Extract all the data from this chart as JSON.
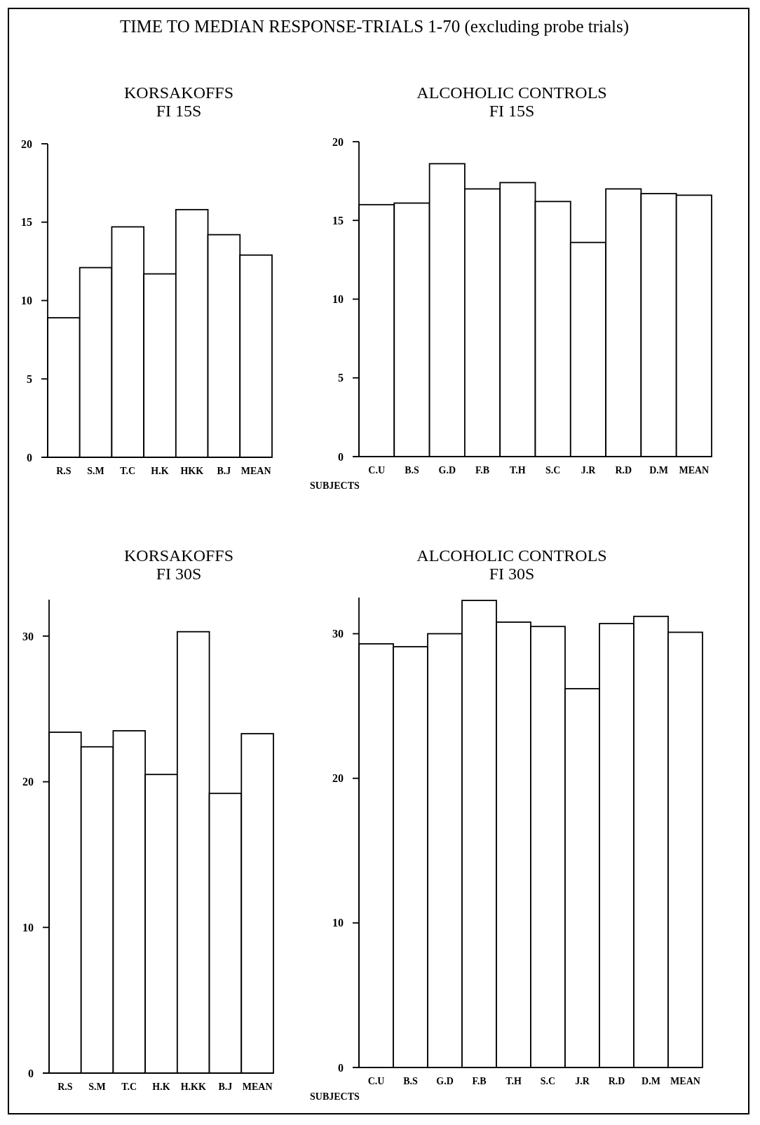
{
  "chart_data": [
    {
      "type": "bar",
      "title": "KORSAKOFFS\nFI 15S",
      "annotations": [
        "TIME TO MEDIAN RESPONSE-TRIALS 1-70  (excluding probe trials)"
      ],
      "categories": [
        "R.S",
        "S.M",
        "T.C",
        "H.K",
        "HKK",
        "B.J",
        "MEAN"
      ],
      "values": [
        8.9,
        12.1,
        14.7,
        11.7,
        15.8,
        14.2,
        12.9
      ],
      "color": "#ffffff",
      "ylim": [
        0,
        20
      ],
      "yticks": [
        0,
        5,
        10,
        15,
        20
      ]
    },
    {
      "type": "bar",
      "title": "ALCOHOLIC CONTROLS\nFI 15S",
      "xlabel": "SUBJECTS",
      "categories": [
        "C.U",
        "B.S",
        "G.D",
        "F.B",
        "T.H",
        "S.C",
        "J.R",
        "R.D",
        "D.M",
        "MEAN"
      ],
      "values": [
        16.0,
        16.1,
        18.6,
        17.0,
        17.4,
        16.2,
        13.6,
        17.0,
        16.7,
        16.6
      ],
      "color": "#ffffff",
      "ylim": [
        0,
        20
      ],
      "yticks": [
        0,
        5,
        10,
        15,
        20
      ]
    },
    {
      "type": "bar",
      "title": "KORSAKOFFS\nFI 30S",
      "categories": [
        "R.S",
        "S.M",
        "T.C",
        "H.K",
        "H.KK",
        "B.J",
        "MEAN"
      ],
      "values": [
        23.4,
        22.4,
        23.5,
        20.5,
        30.3,
        19.2,
        23.3
      ],
      "color": "#ffffff",
      "ylim": [
        0,
        32.5
      ],
      "yticks": [
        0,
        10,
        20,
        30
      ]
    },
    {
      "type": "bar",
      "title": "ALCOHOLIC CONTROLS\nFI 30S",
      "xlabel": "SUBJECTS",
      "categories": [
        "C.U",
        "B.S",
        "G.D",
        "F.B",
        "T.H",
        "S.C",
        "J.R",
        "R.D",
        "D.M",
        "MEAN"
      ],
      "values": [
        29.3,
        29.1,
        30.0,
        32.3,
        30.8,
        30.5,
        26.2,
        30.7,
        31.2,
        30.1
      ],
      "color": "#ffffff",
      "ylim": [
        0,
        32.5
      ],
      "yticks": [
        0,
        10,
        20,
        30
      ]
    }
  ]
}
